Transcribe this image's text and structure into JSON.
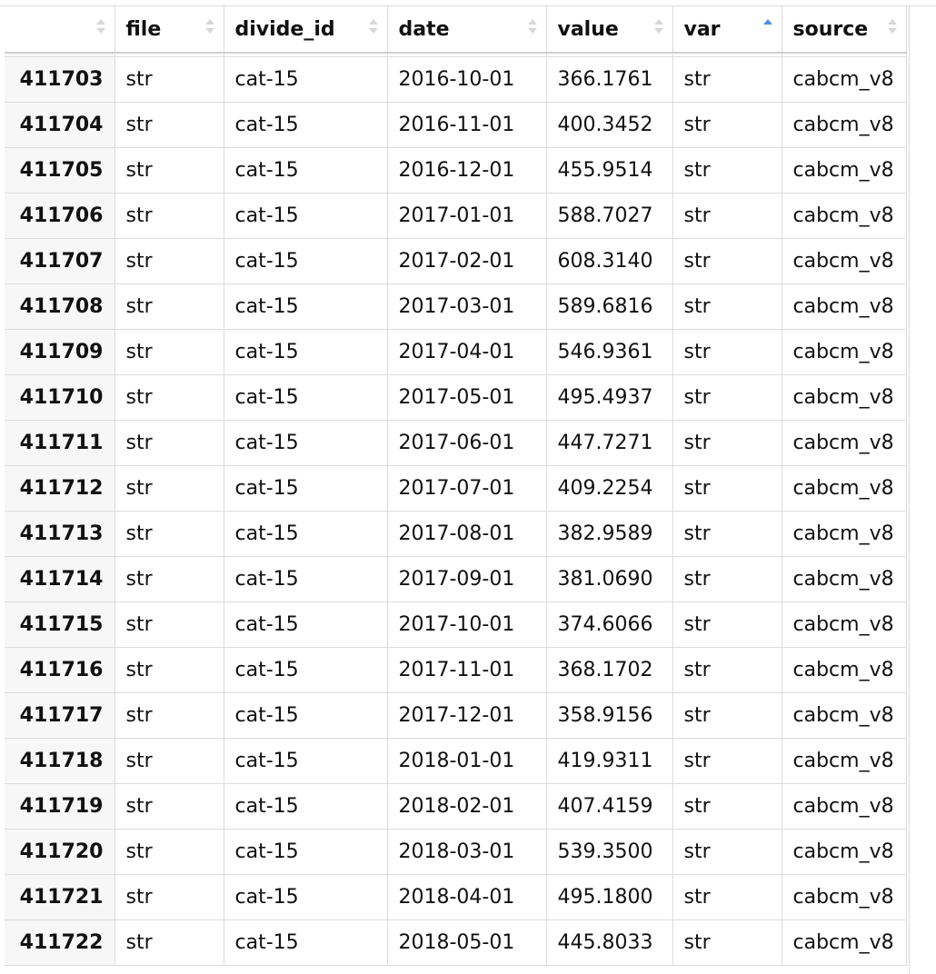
{
  "table": {
    "columns": [
      "file",
      "divide_id",
      "date",
      "value",
      "var",
      "source"
    ],
    "sort": {
      "column": "var",
      "direction": "ascending"
    },
    "accent_color": "#4a90e2",
    "rows": [
      {
        "index": "411703",
        "file": "str",
        "divide_id": "cat-15",
        "date": "2016-10-01",
        "value": "366.1761",
        "var": "str",
        "source": "cabcm_v8"
      },
      {
        "index": "411704",
        "file": "str",
        "divide_id": "cat-15",
        "date": "2016-11-01",
        "value": "400.3452",
        "var": "str",
        "source": "cabcm_v8"
      },
      {
        "index": "411705",
        "file": "str",
        "divide_id": "cat-15",
        "date": "2016-12-01",
        "value": "455.9514",
        "var": "str",
        "source": "cabcm_v8"
      },
      {
        "index": "411706",
        "file": "str",
        "divide_id": "cat-15",
        "date": "2017-01-01",
        "value": "588.7027",
        "var": "str",
        "source": "cabcm_v8"
      },
      {
        "index": "411707",
        "file": "str",
        "divide_id": "cat-15",
        "date": "2017-02-01",
        "value": "608.3140",
        "var": "str",
        "source": "cabcm_v8"
      },
      {
        "index": "411708",
        "file": "str",
        "divide_id": "cat-15",
        "date": "2017-03-01",
        "value": "589.6816",
        "var": "str",
        "source": "cabcm_v8"
      },
      {
        "index": "411709",
        "file": "str",
        "divide_id": "cat-15",
        "date": "2017-04-01",
        "value": "546.9361",
        "var": "str",
        "source": "cabcm_v8"
      },
      {
        "index": "411710",
        "file": "str",
        "divide_id": "cat-15",
        "date": "2017-05-01",
        "value": "495.4937",
        "var": "str",
        "source": "cabcm_v8"
      },
      {
        "index": "411711",
        "file": "str",
        "divide_id": "cat-15",
        "date": "2017-06-01",
        "value": "447.7271",
        "var": "str",
        "source": "cabcm_v8"
      },
      {
        "index": "411712",
        "file": "str",
        "divide_id": "cat-15",
        "date": "2017-07-01",
        "value": "409.2254",
        "var": "str",
        "source": "cabcm_v8"
      },
      {
        "index": "411713",
        "file": "str",
        "divide_id": "cat-15",
        "date": "2017-08-01",
        "value": "382.9589",
        "var": "str",
        "source": "cabcm_v8"
      },
      {
        "index": "411714",
        "file": "str",
        "divide_id": "cat-15",
        "date": "2017-09-01",
        "value": "381.0690",
        "var": "str",
        "source": "cabcm_v8"
      },
      {
        "index": "411715",
        "file": "str",
        "divide_id": "cat-15",
        "date": "2017-10-01",
        "value": "374.6066",
        "var": "str",
        "source": "cabcm_v8"
      },
      {
        "index": "411716",
        "file": "str",
        "divide_id": "cat-15",
        "date": "2017-11-01",
        "value": "368.1702",
        "var": "str",
        "source": "cabcm_v8"
      },
      {
        "index": "411717",
        "file": "str",
        "divide_id": "cat-15",
        "date": "2017-12-01",
        "value": "358.9156",
        "var": "str",
        "source": "cabcm_v8"
      },
      {
        "index": "411718",
        "file": "str",
        "divide_id": "cat-15",
        "date": "2018-01-01",
        "value": "419.9311",
        "var": "str",
        "source": "cabcm_v8"
      },
      {
        "index": "411719",
        "file": "str",
        "divide_id": "cat-15",
        "date": "2018-02-01",
        "value": "407.4159",
        "var": "str",
        "source": "cabcm_v8"
      },
      {
        "index": "411720",
        "file": "str",
        "divide_id": "cat-15",
        "date": "2018-03-01",
        "value": "539.3500",
        "var": "str",
        "source": "cabcm_v8"
      },
      {
        "index": "411721",
        "file": "str",
        "divide_id": "cat-15",
        "date": "2018-04-01",
        "value": "495.1800",
        "var": "str",
        "source": "cabcm_v8"
      },
      {
        "index": "411722",
        "file": "str",
        "divide_id": "cat-15",
        "date": "2018-05-01",
        "value": "445.8033",
        "var": "str",
        "source": "cabcm_v8"
      }
    ]
  }
}
